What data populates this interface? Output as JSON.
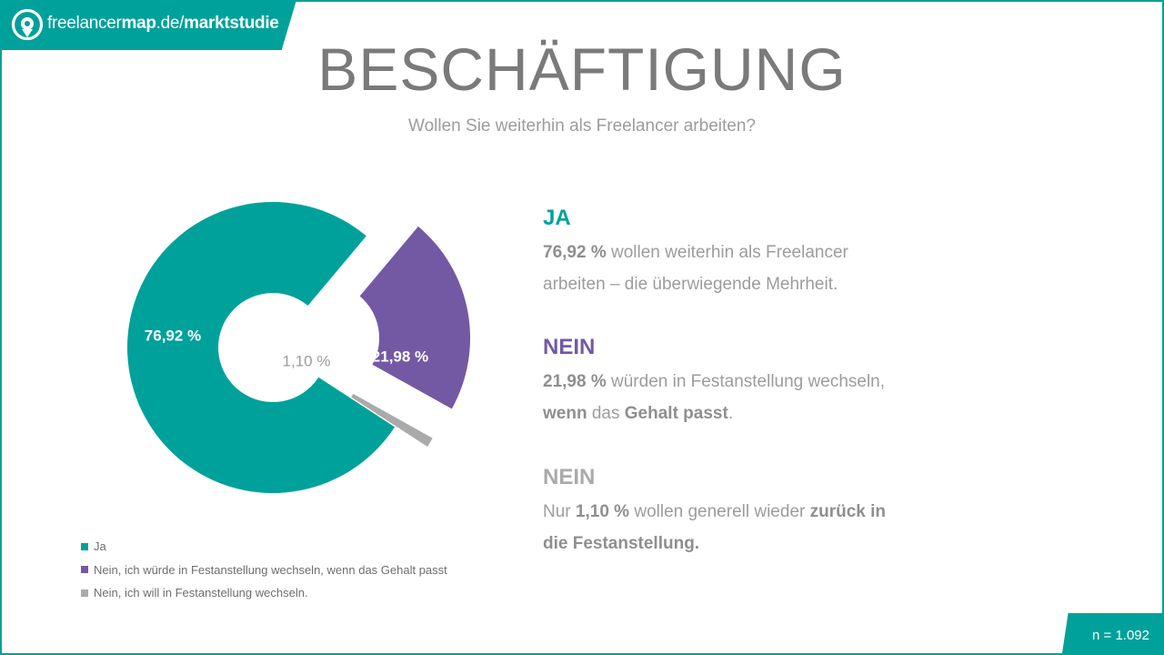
{
  "logo": {
    "brand_regular": "freelancer",
    "brand_bold": "map",
    "domain": ".de/",
    "section": "marktstudie"
  },
  "header": {
    "title": "BESCHÄFTIGUNG",
    "subtitle": "Wollen Sie weiterhin als Freelancer arbeiten?"
  },
  "colors": {
    "ja": "#00a19a",
    "nein_wechsel": "#7359a3",
    "nein": "#aaaaaa",
    "text_gray": "#9c9c9c"
  },
  "chart_data": {
    "type": "pie",
    "style": "exploded-donut",
    "categories": [
      "Ja",
      "Nein, ich würde in Festanstellung wechseln, wenn das Gehalt passt",
      "Nein, ich will in Festanstellung wechseln."
    ],
    "values": [
      76.92,
      21.98,
      1.1
    ],
    "data_labels": [
      "76,92 %",
      "21,98 %",
      "1,10 %"
    ],
    "colors": [
      "#00a19a",
      "#7359a3",
      "#aaaaaa"
    ],
    "legend_position": "bottom-left"
  },
  "info": {
    "ja": {
      "heading": "JA",
      "l1_bold": "76,92 %",
      "l1_text": " wollen weiterhin als Freelancer",
      "l2_text": "arbeiten – die überwiegende Mehrheit."
    },
    "nein1": {
      "heading": "NEIN",
      "l1_bold": "21,98 %",
      "l1_text": " würden in Festanstellung wechseln,",
      "l2_bold1": "wenn",
      "l2_text": " das ",
      "l2_bold2": "Gehalt passt",
      "l2_end": "."
    },
    "nein2": {
      "heading": "NEIN",
      "l1_text1": "Nur ",
      "l1_bold": "1,10 %",
      "l1_text2": " wollen generell wieder ",
      "l1_bold2": "zurück in",
      "l2_bold": "die Festanstellung."
    }
  },
  "footer": {
    "sample": "n = 1.092"
  }
}
